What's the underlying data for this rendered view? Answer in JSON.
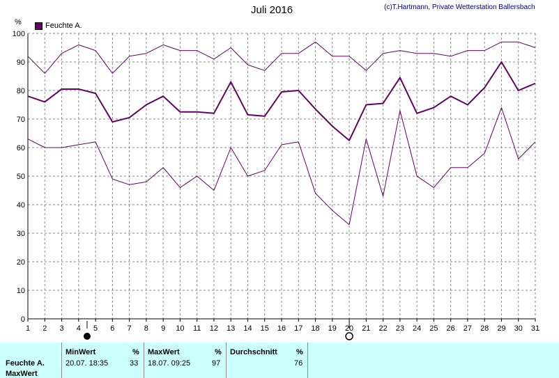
{
  "title": "Juli 2016",
  "copyright": "(c)T.Hartmann, Private Wetterstation Ballersbach",
  "chart_data": {
    "type": "line",
    "title": "Juli 2016",
    "ylabel": "%",
    "ylim": [
      0,
      100
    ],
    "yticks": [
      0,
      10,
      20,
      30,
      40,
      50,
      60,
      70,
      80,
      90,
      100
    ],
    "x": [
      1,
      2,
      3,
      4,
      5,
      6,
      7,
      8,
      9,
      10,
      11,
      12,
      13,
      14,
      15,
      16,
      17,
      18,
      19,
      20,
      21,
      22,
      23,
      24,
      25,
      26,
      27,
      28,
      29,
      30,
      31
    ],
    "xlim": [
      1,
      31
    ],
    "grid": true,
    "legend": "top-left",
    "legend_entries": [
      "Feuchte A."
    ],
    "color": "#660066",
    "series": [
      {
        "role": "max",
        "values": [
          92,
          86,
          93,
          96,
          94,
          86,
          92,
          93,
          96,
          94,
          94,
          91,
          95,
          89,
          87,
          93,
          93,
          97,
          92,
          92,
          87,
          93,
          94,
          93,
          93,
          92,
          94,
          94,
          97,
          97,
          95
        ]
      },
      {
        "name": "Feuchte A.",
        "role": "mean",
        "values": [
          78,
          76,
          80.5,
          80.5,
          79,
          69,
          70.5,
          75,
          78,
          72.5,
          72.5,
          72,
          83,
          71.5,
          71,
          79.5,
          80,
          73.5,
          67.5,
          62.5,
          75,
          75.5,
          84.5,
          72,
          74,
          78,
          75,
          81,
          90,
          80,
          82.5
        ]
      },
      {
        "role": "min",
        "values": [
          63,
          60,
          60,
          61,
          62,
          49,
          47,
          48,
          53,
          46,
          50,
          45,
          60,
          50,
          52,
          61,
          62,
          44,
          38,
          33,
          63,
          43,
          73,
          50,
          46,
          53,
          53,
          58,
          74,
          56,
          62
        ]
      }
    ],
    "markers": [
      {
        "x": 4.5,
        "symbol": "new-moon"
      },
      {
        "x": 20,
        "symbol": "full-moon"
      }
    ]
  },
  "panel": {
    "min_header": "MinWert",
    "min_unit": "%",
    "max_header": "MaxWert",
    "max_unit": "%",
    "avg_header": "Durchschnitt",
    "avg_unit": "%",
    "series_label": "Feuchte A.",
    "row2_label": "MaxWert",
    "min_time": "20.07.  18:35",
    "min_value": "33",
    "max_time": "18.07.  09:25",
    "max_value": "97",
    "avg_value": "76"
  }
}
